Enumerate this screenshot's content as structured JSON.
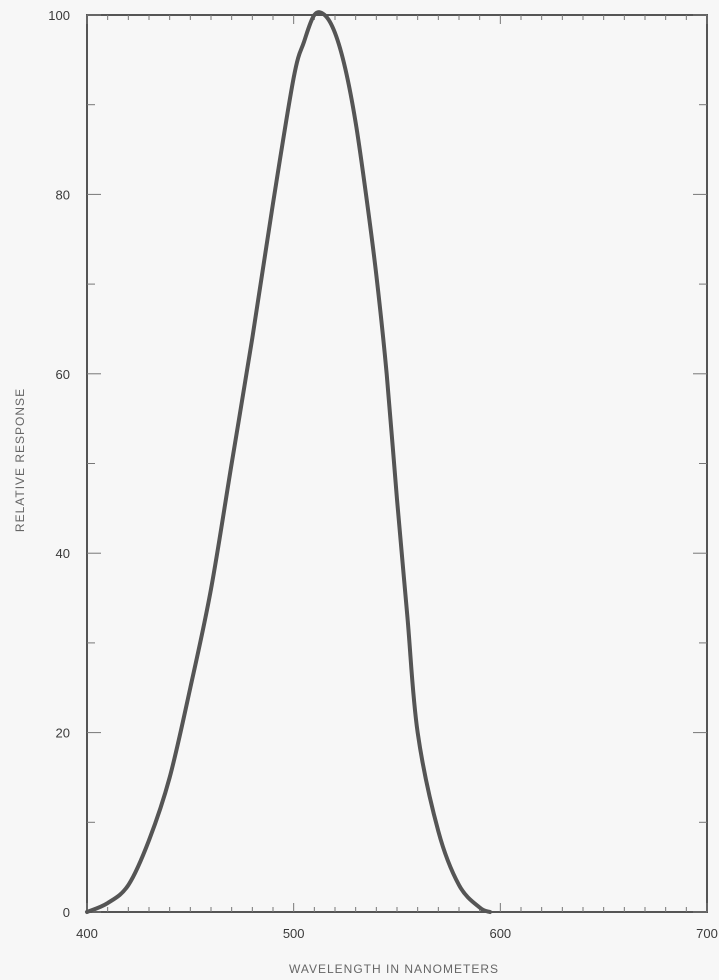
{
  "chart_data": {
    "type": "line",
    "title": "",
    "xlabel": "WAVELENGTH  IN  NANOMETERS",
    "ylabel": "RELATIVE RESPONSE",
    "xlim": [
      400,
      700
    ],
    "ylim": [
      0,
      100
    ],
    "x_ticks": [
      400,
      500,
      600,
      700
    ],
    "y_ticks": [
      0,
      20,
      40,
      60,
      80,
      100
    ],
    "x_minor_step": 10,
    "y_minor_step": 10,
    "grid": false,
    "series": [
      {
        "color": "#555555",
        "x": [
          400,
          410,
          420,
          430,
          440,
          450,
          460,
          470,
          480,
          490,
          500,
          505,
          510,
          515,
          520,
          525,
          530,
          535,
          540,
          545,
          550,
          555,
          560,
          570,
          580,
          590,
          595
        ],
        "y": [
          0,
          1,
          3,
          8,
          15,
          25,
          36,
          50,
          64,
          79,
          93,
          97,
          100,
          100,
          98,
          94,
          88,
          80,
          71,
          60,
          46,
          33,
          20,
          9,
          3,
          0.5,
          0
        ]
      }
    ]
  }
}
